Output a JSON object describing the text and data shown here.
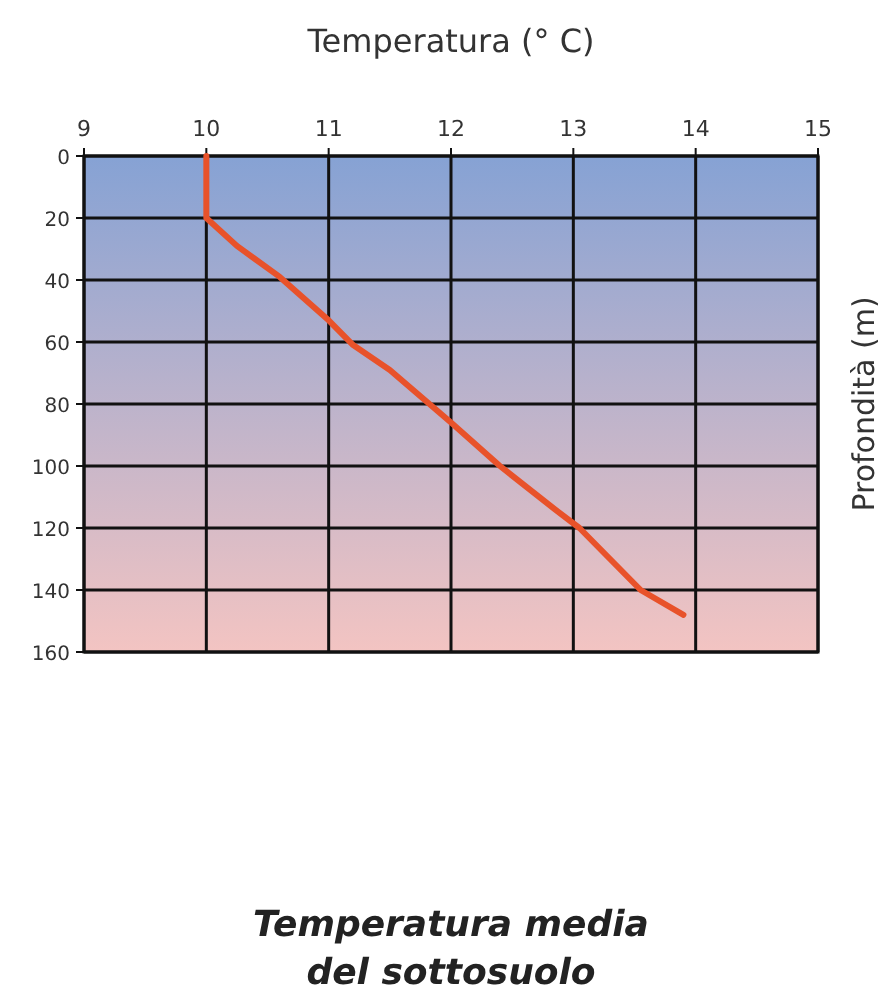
{
  "chart_data": {
    "type": "line",
    "title": "Temperatura media\ndel sottosuolo",
    "xlabel": "Temperatura (° C)",
    "ylabel": "Profondità (m)",
    "xlim": [
      9,
      15
    ],
    "xticks": [
      9,
      10,
      11,
      12,
      13,
      14,
      15
    ],
    "ylim": [
      160,
      0
    ],
    "yticks": [
      0,
      20,
      40,
      60,
      80,
      100,
      120,
      140,
      160
    ],
    "grid": true,
    "marker": "none",
    "line_style": "solid",
    "series": [
      {
        "color": "#e8522a",
        "x": [
          10,
          10,
          10.25,
          10.6,
          11,
          11.2,
          11.5,
          12,
          12.4,
          12.85,
          13.05,
          13.55,
          13.9
        ],
        "values": [
          0,
          20,
          29,
          39,
          53,
          61,
          69,
          86,
          100,
          114,
          120,
          140,
          148
        ]
      }
    ]
  }
}
